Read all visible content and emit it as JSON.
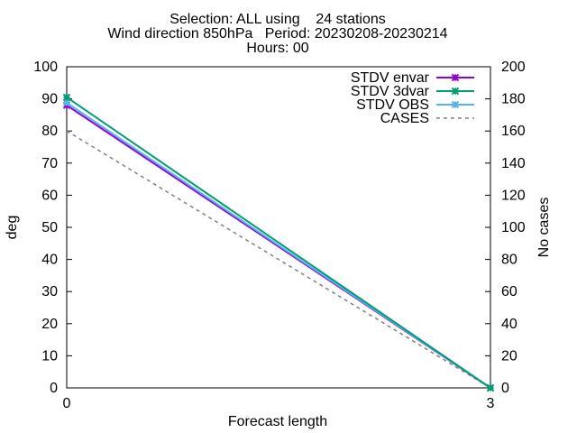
{
  "chart_data": {
    "type": "line",
    "title_lines": [
      "Selection: ALL using    24 stations",
      "Wind direction 850hPa   Period: 20230208-20230214",
      "Hours: 00"
    ],
    "xlabel": "Forecast length",
    "ylabel": "deg",
    "y2label": "No cases",
    "x": [
      0,
      3
    ],
    "xticks": [
      "0",
      "3"
    ],
    "xlim": [
      0,
      3
    ],
    "ylim": [
      0,
      100
    ],
    "y2lim": [
      0,
      200
    ],
    "yticks": [
      "0",
      "10",
      "20",
      "30",
      "40",
      "50",
      "60",
      "70",
      "80",
      "90",
      "100"
    ],
    "y2ticks": [
      "0",
      "20",
      "40",
      "60",
      "80",
      "100",
      "120",
      "140",
      "160",
      "180",
      "200"
    ],
    "legend_position": "top-right",
    "series": [
      {
        "name": "STDV envar",
        "values": [
          88,
          0
        ],
        "axis": "y",
        "color": "#9400d3",
        "marker": "x",
        "dash": false
      },
      {
        "name": "STDV 3dvar",
        "values": [
          90.5,
          0
        ],
        "axis": "y",
        "color": "#009e73",
        "marker": "x",
        "dash": false
      },
      {
        "name": "STDV OBS",
        "values": [
          88.8,
          0
        ],
        "axis": "y",
        "color": "#56b4e9",
        "marker": "x",
        "dash": false
      },
      {
        "name": "CASES",
        "values": [
          160,
          0
        ],
        "axis": "y2",
        "color": "#808080",
        "marker": "none",
        "dash": true
      }
    ]
  }
}
